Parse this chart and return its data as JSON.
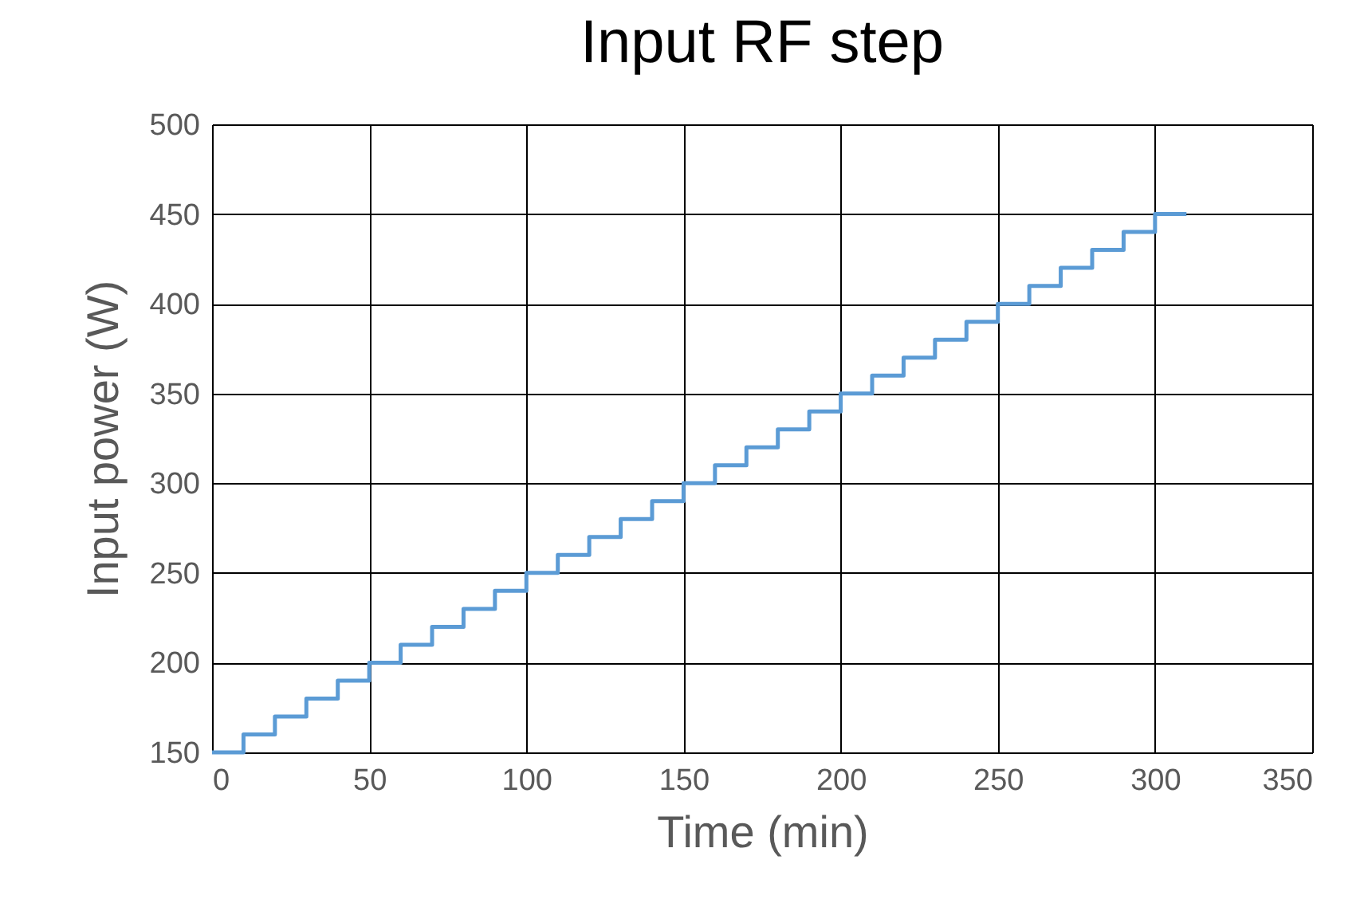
{
  "chart_data": {
    "type": "step",
    "title": "Input RF step",
    "xlabel": "Time (min)",
    "ylabel": "Input power (W)",
    "x": [
      0,
      10,
      20,
      30,
      40,
      50,
      60,
      70,
      80,
      90,
      100,
      110,
      120,
      130,
      140,
      150,
      160,
      170,
      180,
      190,
      200,
      210,
      220,
      230,
      240,
      250,
      260,
      270,
      280,
      290,
      300,
      310
    ],
    "series": [
      {
        "color": "#5b9bd5",
        "values": [
          150,
          160,
          170,
          180,
          190,
          200,
          210,
          220,
          230,
          240,
          250,
          260,
          270,
          280,
          290,
          300,
          310,
          320,
          330,
          340,
          350,
          360,
          370,
          380,
          390,
          400,
          410,
          420,
          430,
          440,
          450,
          450
        ]
      }
    ],
    "xlim": [
      0,
      350
    ],
    "xticks": [
      0,
      50,
      100,
      150,
      200,
      250,
      300,
      350
    ],
    "ylim": [
      150,
      500
    ],
    "yticks": [
      150,
      200,
      250,
      300,
      350,
      400,
      450,
      500
    ],
    "grid": true,
    "marker": "none",
    "line_style": "solid"
  }
}
